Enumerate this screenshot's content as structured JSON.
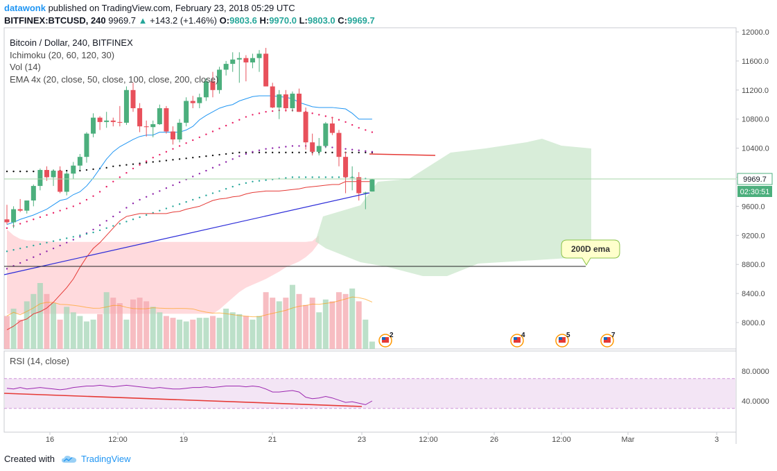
{
  "header": {
    "author": "datawonk",
    "published": " published on TradingView.com, February 23, 2018 05:29 UTC",
    "symbol": "BITFINEX:BTCUSD, 240",
    "last": "9969.7",
    "change_arrow": "▲",
    "change": "+143.2 (+1.46%)",
    "o_label": "O:",
    "o_value": "9803.6",
    "h_label": "H:",
    "h_value": "9970.0",
    "l_label": "L:",
    "l_value": "9803.0",
    "c_label": "C:",
    "c_value": "9969.7"
  },
  "legend": {
    "title": "Bitcoin / Dollar, 240, BITFINEX",
    "ichimoku": "Ichimoku (20, 60, 120, 30)",
    "vol": "Vol (14)",
    "ema": "EMA 4x (20, close, 50, close, 100, close, 200, close)"
  },
  "rsi_legend": "RSI (14, close)",
  "annotation": "200D ema",
  "price_tag": "9969.7",
  "countdown_tag": "02:30:51",
  "footer": {
    "created_with": "Created with",
    "brand": "TradingView"
  },
  "events": [
    {
      "label": "2",
      "icon": "us-flag-event-icon"
    },
    {
      "label": "4",
      "icon": "us-flag-event-icon"
    },
    {
      "label": "5",
      "icon": "us-flag-event-icon"
    },
    {
      "label": "7",
      "icon": "us-flag-event-icon"
    }
  ],
  "colors": {
    "up": "#4caf7d",
    "down": "#e8505b",
    "tenkan": "#2196f3",
    "kijun": "#e53935",
    "trend": "#2a2ad8",
    "cloud_up": "#c8e6c9",
    "cloud_down": "#ffcdd2",
    "rsi_line": "#9c27b0",
    "rsi_band": "#f3e5f5",
    "tv_blue": "#2196f3"
  },
  "chart_data": {
    "type": "candlestick",
    "price_ticks": [
      "12000.0",
      "11600.0",
      "11200.0",
      "10800.0",
      "10400.0",
      "10000.0",
      "9600.0",
      "9200.0",
      "8800.0",
      "8400.0",
      "8000.0"
    ],
    "rsi_ticks": [
      "80.0000",
      "40.0000"
    ],
    "x_ticks": [
      "16",
      "12:00",
      "19",
      "21",
      "23",
      "12:00",
      "26",
      "12:00",
      "Mar",
      "3"
    ],
    "ylim": [
      7600,
      12200
    ],
    "rsi_ylim": [
      20,
      100
    ],
    "candles": [
      [
        9420,
        9620,
        9350,
        9380
      ],
      [
        9380,
        9600,
        9300,
        9560
      ],
      [
        9560,
        9700,
        9520,
        9540
      ],
      [
        9540,
        9650,
        9500,
        9680
      ],
      [
        9680,
        9900,
        9600,
        9880
      ],
      [
        9880,
        10120,
        9820,
        10100
      ],
      [
        10100,
        10150,
        9950,
        10000
      ],
      [
        10000,
        10110,
        9880,
        10090
      ],
      [
        10090,
        10150,
        9780,
        9800
      ],
      [
        9800,
        10080,
        9750,
        10050
      ],
      [
        10050,
        10210,
        9980,
        10160
      ],
      [
        10160,
        10320,
        10100,
        10280
      ],
      [
        10280,
        10620,
        10200,
        10600
      ],
      [
        10600,
        10880,
        10550,
        10820
      ],
      [
        10820,
        10840,
        10650,
        10760
      ],
      [
        10760,
        10900,
        10680,
        10780
      ],
      [
        10780,
        10820,
        10700,
        10760
      ],
      [
        10760,
        10980,
        10700,
        10750
      ],
      [
        10750,
        11250,
        10720,
        11200
      ],
      [
        11200,
        11300,
        10900,
        10950
      ],
      [
        10950,
        11020,
        10620,
        10700
      ],
      [
        10700,
        10780,
        10560,
        10690
      ],
      [
        10690,
        10780,
        10550,
        10730
      ],
      [
        10730,
        11000,
        10720,
        10950
      ],
      [
        10950,
        10980,
        10600,
        10630
      ],
      [
        10630,
        10700,
        10450,
        10520
      ],
      [
        10520,
        10800,
        10480,
        10750
      ],
      [
        10750,
        11100,
        10700,
        11050
      ],
      [
        11050,
        11120,
        10950,
        11020
      ],
      [
        11020,
        11150,
        10950,
        11100
      ],
      [
        11100,
        11360,
        11050,
        11320
      ],
      [
        11320,
        11450,
        11100,
        11200
      ],
      [
        11200,
        11520,
        11150,
        11480
      ],
      [
        11480,
        11600,
        11400,
        11560
      ],
      [
        11560,
        11720,
        11450,
        11620
      ],
      [
        11620,
        11720,
        11300,
        11640
      ],
      [
        11640,
        11680,
        11320,
        11580
      ],
      [
        11580,
        11700,
        11500,
        11640
      ],
      [
        11640,
        11750,
        11450,
        11700
      ],
      [
        11700,
        11780,
        11250,
        11250
      ],
      [
        11250,
        11300,
        10950,
        10960
      ],
      [
        10960,
        11200,
        10800,
        11140
      ],
      [
        11140,
        11200,
        10900,
        10950
      ],
      [
        10950,
        11180,
        10900,
        11150
      ],
      [
        11150,
        11220,
        10900,
        10900
      ],
      [
        10900,
        10960,
        10380,
        10480
      ],
      [
        10480,
        10600,
        10300,
        10350
      ],
      [
        10350,
        10540,
        10300,
        10430
      ],
      [
        10430,
        10760,
        10400,
        10740
      ],
      [
        10740,
        10830,
        10580,
        10610
      ],
      [
        10610,
        10650,
        10150,
        10280
      ],
      [
        10280,
        10350,
        9780,
        10000
      ],
      [
        10000,
        10150,
        9820,
        10000
      ],
      [
        10000,
        10070,
        9680,
        9780
      ],
      [
        9780,
        9800,
        9560,
        9790
      ],
      [
        9803.6,
        9970,
        9803,
        9969.7
      ]
    ],
    "volume": [
      180,
      220,
      160,
      260,
      300,
      360,
      300,
      250,
      160,
      230,
      200,
      180,
      150,
      160,
      190,
      310,
      280,
      250,
      160,
      270,
      280,
      260,
      230,
      200,
      180,
      170,
      160,
      150,
      160,
      170,
      170,
      180,
      170,
      220,
      200,
      190,
      180,
      160,
      180,
      310,
      280,
      260,
      280,
      350,
      300,
      240,
      280,
      200,
      270,
      260,
      310,
      300,
      330,
      260,
      160,
      40
    ],
    "tenkan": [
      9350,
      9380,
      9420,
      9450,
      9480,
      9520,
      9560,
      9620,
      9680,
      9700,
      9760,
      9800,
      9880,
      9990,
      10120,
      10250,
      10350,
      10420,
      10470,
      10520,
      10560,
      10580,
      10580,
      10620,
      10620,
      10620,
      10620,
      10650,
      10700,
      10790,
      10850,
      10900,
      10950,
      10980,
      11000,
      11050,
      11080,
      11110,
      11120,
      11120,
      11120,
      11110,
      11100,
      11080,
      11030,
      11000,
      10970,
      10960,
      10960,
      10960,
      10950,
      10940,
      10880,
      10800,
      10800,
      10800
    ],
    "kijun": [
      7900,
      7950,
      8020,
      8050,
      8120,
      8150,
      8200,
      8280,
      8380,
      8480,
      8600,
      8760,
      8900,
      9020,
      9100,
      9200,
      9300,
      9400,
      9460,
      9480,
      9500,
      9500,
      9500,
      9500,
      9500,
      9520,
      9530,
      9560,
      9580,
      9600,
      9640,
      9680,
      9700,
      9710,
      9730,
      9740,
      9770,
      9790,
      9800,
      9810,
      9810,
      9810,
      9820,
      9830,
      9840,
      9860,
      9870,
      9880,
      9890,
      9900,
      9900,
      9940,
      9940,
      9940,
      9940,
      9940
    ],
    "ema_black": [
      10080,
      10080,
      10080,
      10080,
      10080,
      10080,
      10080,
      10085,
      10090,
      10090,
      10090,
      10090,
      10100,
      10110,
      10120,
      10130,
      10150,
      10160,
      10170,
      10180,
      10190,
      10200,
      10210,
      10220,
      10230,
      10240,
      10250,
      10260,
      10270,
      10280,
      10290,
      10300,
      10310,
      10320,
      10330,
      10340,
      10340,
      10340,
      10340,
      10340,
      10340,
      10340,
      10340,
      10340,
      10340,
      10340,
      10340,
      10340,
      10340,
      10340,
      10340,
      10340,
      10340,
      10340,
      10340,
      10340
    ],
    "ema_purple": [
      8740,
      8780,
      8820,
      8860,
      8900,
      8940,
      8980,
      9020,
      9060,
      9100,
      9140,
      9180,
      9230,
      9280,
      9340,
      9400,
      9460,
      9520,
      9580,
      9640,
      9690,
      9730,
      9770,
      9810,
      9850,
      9890,
      9930,
      9970,
      10010,
      10050,
      10090,
      10130,
      10170,
      10210,
      10250,
      10290,
      10320,
      10350,
      10370,
      10390,
      10400,
      10410,
      10420,
      10430,
      10430,
      10430,
      10420,
      10420,
      10420,
      10410,
      10400,
      10390,
      10380,
      10370,
      10360,
      10350
    ],
    "ema_pink": [
      9300,
      9330,
      9360,
      9390,
      9420,
      9450,
      9480,
      9510,
      9540,
      9570,
      9600,
      9640,
      9690,
      9740,
      9800,
      9870,
      9940,
      10000,
      10060,
      10120,
      10170,
      10220,
      10270,
      10310,
      10350,
      10390,
      10430,
      10470,
      10510,
      10550,
      10590,
      10630,
      10670,
      10710,
      10750,
      10790,
      10830,
      10860,
      10880,
      10900,
      10910,
      10920,
      10920,
      10920,
      10910,
      10900,
      10880,
      10860,
      10840,
      10820,
      10790,
      10760,
      10720,
      10680,
      10650,
      10620
    ],
    "ema_teal": [
      8980,
      9000,
      9020,
      9040,
      9060,
      9080,
      9100,
      9120,
      9140,
      9160,
      9180,
      9200,
      9220,
      9240,
      9270,
      9300,
      9330,
      9360,
      9390,
      9420,
      9450,
      9480,
      9510,
      9540,
      9570,
      9600,
      9630,
      9660,
      9690,
      9720,
      9750,
      9780,
      9810,
      9840,
      9870,
      9900,
      9920,
      9940,
      9950,
      9960,
      9970,
      9980,
      9990,
      10000,
      10000,
      10000,
      10000,
      10000,
      10000,
      10000,
      10000,
      10000,
      10000,
      9990,
      9980,
      9970
    ],
    "cloud_red_top": [
      9280,
      9200,
      9150,
      9130,
      9130,
      9120,
      9120,
      9110,
      9110,
      9110,
      9110,
      9110,
      9110,
      9110,
      9110,
      9110,
      9110,
      9110,
      9110,
      9110,
      9110,
      9110,
      9110,
      9110,
      9110,
      9110,
      9110,
      9110,
      9110,
      9110,
      9110,
      9110,
      9110,
      9110,
      9110,
      9110,
      9110,
      9110,
      9110,
      9110,
      9110,
      9110,
      9110,
      9110,
      9110,
      9110,
      9120,
      9200
    ],
    "cloud_red_bottom": [
      8120,
      8120,
      8120,
      8120,
      8120,
      8120,
      8120,
      8120,
      8120,
      8120,
      8120,
      8120,
      8120,
      8120,
      8120,
      8120,
      8120,
      8120,
      8120,
      8120,
      8120,
      8120,
      8120,
      8120,
      8120,
      8120,
      8120,
      8120,
      8120,
      8120,
      8120,
      8120,
      8180,
      8260,
      8340,
      8420,
      8480,
      8520,
      8560,
      8600,
      8650,
      8700,
      8760,
      8800,
      8840,
      8900,
      8980,
      9100
    ],
    "rsi": [
      57,
      56,
      58,
      56,
      57,
      58,
      57,
      56,
      55,
      56,
      58,
      59,
      60,
      60,
      61,
      60,
      59,
      60,
      61,
      60,
      59,
      58,
      57,
      58,
      57,
      56,
      56,
      57,
      58,
      58,
      59,
      58,
      59,
      60,
      60,
      60,
      59,
      60,
      59,
      56,
      52,
      52,
      53,
      54,
      52,
      45,
      43,
      44,
      46,
      44,
      41,
      38,
      39,
      37,
      35,
      40
    ]
  }
}
